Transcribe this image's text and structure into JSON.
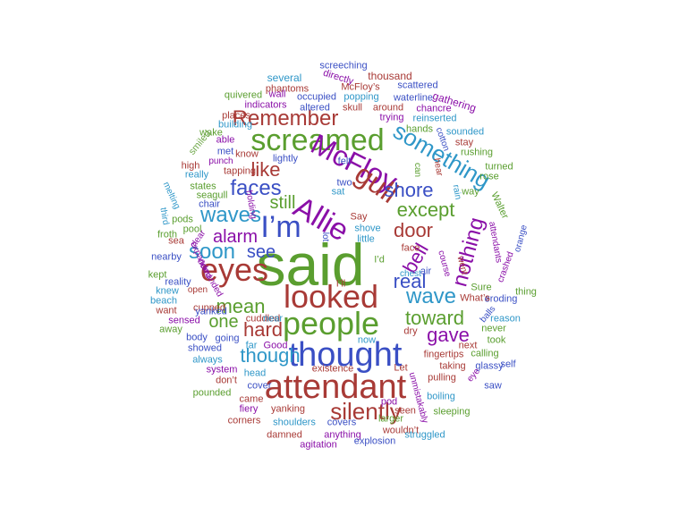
{
  "colors": {
    "green": "#5a9e2f",
    "red": "#a83a36",
    "blue": "#3a4fc4",
    "purple": "#8a0fa8",
    "cyan": "#2f97c8",
    "light_green": "#6fa84a"
  },
  "words": [
    {
      "text": "said",
      "color": "green",
      "size": 66
    },
    {
      "text": "thought",
      "color": "blue",
      "size": 38
    },
    {
      "text": "attendant",
      "color": "red",
      "size": 38
    },
    {
      "text": "people",
      "color": "green",
      "size": 36
    },
    {
      "text": "looked",
      "color": "red",
      "size": 36
    },
    {
      "text": "screamed",
      "color": "green",
      "size": 34
    },
    {
      "text": "eyes",
      "color": "red",
      "size": 36
    },
    {
      "text": "I’m",
      "color": "blue",
      "size": 34
    },
    {
      "text": "Allie",
      "color": "purple",
      "size": 34
    },
    {
      "text": "McFloy",
      "color": "purple",
      "size": 32
    },
    {
      "text": "gull",
      "color": "red",
      "size": 32
    },
    {
      "text": "something",
      "color": "cyan",
      "size": 26
    },
    {
      "text": "faces",
      "color": "blue",
      "size": 24
    },
    {
      "text": "Remember",
      "color": "red",
      "size": 24
    },
    {
      "text": "silently",
      "color": "red",
      "size": 26
    },
    {
      "text": "wave",
      "color": "cyan",
      "size": 24
    },
    {
      "text": "waves",
      "color": "cyan",
      "size": 24
    },
    {
      "text": "soon",
      "color": "cyan",
      "size": 24
    },
    {
      "text": "shore",
      "color": "blue",
      "size": 22
    },
    {
      "text": "mean",
      "color": "green",
      "size": 22
    },
    {
      "text": "nothing",
      "color": "purple",
      "size": 24
    },
    {
      "text": "toward",
      "color": "green",
      "size": 22
    },
    {
      "text": "gave",
      "color": "purple",
      "size": 22
    },
    {
      "text": "alarm",
      "color": "purple",
      "size": 20
    },
    {
      "text": "door",
      "color": "red",
      "size": 22
    },
    {
      "text": "except",
      "color": "green",
      "size": 22
    },
    {
      "text": "real",
      "color": "blue",
      "size": 22
    },
    {
      "text": "bell",
      "color": "purple",
      "size": 22
    },
    {
      "text": "like",
      "color": "red",
      "size": 22
    },
    {
      "text": "see",
      "color": "blue",
      "size": 20
    },
    {
      "text": "still",
      "color": "green",
      "size": 20
    },
    {
      "text": "hard",
      "color": "red",
      "size": 22
    },
    {
      "text": "one",
      "color": "green",
      "size": 20
    },
    {
      "text": "though",
      "color": "cyan",
      "size": 22
    },
    {
      "text": "screeching",
      "color": "blue",
      "size": 11
    },
    {
      "text": "thousand",
      "color": "red",
      "size": 12
    },
    {
      "text": "several",
      "color": "cyan",
      "size": 12
    },
    {
      "text": "directly",
      "color": "purple",
      "size": 11
    },
    {
      "text": "phantoms",
      "color": "red",
      "size": 11
    },
    {
      "text": "McFloy’s",
      "color": "red",
      "size": 11
    },
    {
      "text": "scattered",
      "color": "blue",
      "size": 11
    },
    {
      "text": "quivered",
      "color": "green",
      "size": 11
    },
    {
      "text": "wall",
      "color": "purple",
      "size": 11
    },
    {
      "text": "occupied",
      "color": "blue",
      "size": 11
    },
    {
      "text": "popping",
      "color": "cyan",
      "size": 11
    },
    {
      "text": "waterline",
      "color": "blue",
      "size": 11
    },
    {
      "text": "gathering",
      "color": "purple",
      "size": 12
    },
    {
      "text": "indicators",
      "color": "purple",
      "size": 11
    },
    {
      "text": "altered",
      "color": "blue",
      "size": 11
    },
    {
      "text": "skull",
      "color": "red",
      "size": 11
    },
    {
      "text": "around",
      "color": "red",
      "size": 11
    },
    {
      "text": "chancre",
      "color": "purple",
      "size": 11
    },
    {
      "text": "places",
      "color": "red",
      "size": 11
    },
    {
      "text": "trying",
      "color": "purple",
      "size": 11
    },
    {
      "text": "reinserted",
      "color": "cyan",
      "size": 11
    },
    {
      "text": "building",
      "color": "cyan",
      "size": 11
    },
    {
      "text": "wake",
      "color": "green",
      "size": 11
    },
    {
      "text": "hands",
      "color": "green",
      "size": 11
    },
    {
      "text": "sounded",
      "color": "cyan",
      "size": 11
    },
    {
      "text": "cotton",
      "color": "blue",
      "size": 10
    },
    {
      "text": "smiled",
      "color": "light_green",
      "size": 11
    },
    {
      "text": "able",
      "color": "purple",
      "size": 11
    },
    {
      "text": "stay",
      "color": "red",
      "size": 11
    },
    {
      "text": "know",
      "color": "red",
      "size": 11
    },
    {
      "text": "rushing",
      "color": "green",
      "size": 11
    },
    {
      "text": "met",
      "color": "blue",
      "size": 11
    },
    {
      "text": "felt",
      "color": "blue",
      "size": 11
    },
    {
      "text": "turned",
      "color": "green",
      "size": 11
    },
    {
      "text": "punch",
      "color": "purple",
      "size": 10
    },
    {
      "text": "high",
      "color": "red",
      "size": 11
    },
    {
      "text": "lightly",
      "color": "blue",
      "size": 11
    },
    {
      "text": "hear",
      "color": "red",
      "size": 10
    },
    {
      "text": "really",
      "color": "cyan",
      "size": 11
    },
    {
      "text": "tapping",
      "color": "red",
      "size": 11
    },
    {
      "text": "can",
      "color": "green",
      "size": 10
    },
    {
      "text": "states",
      "color": "green",
      "size": 11
    },
    {
      "text": "two",
      "color": "blue",
      "size": 11
    },
    {
      "text": "rose",
      "color": "green",
      "size": 11
    },
    {
      "text": "melting",
      "color": "cyan",
      "size": 10
    },
    {
      "text": "seagull",
      "color": "green",
      "size": 11
    },
    {
      "text": "rain",
      "color": "cyan",
      "size": 10
    },
    {
      "text": "way",
      "color": "green",
      "size": 11
    },
    {
      "text": "holding",
      "color": "purple",
      "size": 10
    },
    {
      "text": "chair",
      "color": "blue",
      "size": 11
    },
    {
      "text": "sat",
      "color": "cyan",
      "size": 11
    },
    {
      "text": "Walter",
      "color": "green",
      "size": 11
    },
    {
      "text": "third",
      "color": "cyan",
      "size": 10
    },
    {
      "text": "pods",
      "color": "green",
      "size": 11
    },
    {
      "text": "Say",
      "color": "red",
      "size": 11
    },
    {
      "text": "pool",
      "color": "green",
      "size": 11
    },
    {
      "text": "lot",
      "color": "blue",
      "size": 10
    },
    {
      "text": "froth",
      "color": "green",
      "size": 11
    },
    {
      "text": "clear",
      "color": "purple",
      "size": 10
    },
    {
      "text": "shove",
      "color": "cyan",
      "size": 11
    },
    {
      "text": "sea",
      "color": "red",
      "size": 11
    },
    {
      "text": "little",
      "color": "cyan",
      "size": 11
    },
    {
      "text": "attendants",
      "color": "purple",
      "size": 10
    },
    {
      "text": "orange",
      "color": "blue",
      "size": 10
    },
    {
      "text": "I’d",
      "color": "green",
      "size": 11
    },
    {
      "text": "face",
      "color": "red",
      "size": 11
    },
    {
      "text": "course",
      "color": "purple",
      "size": 10
    },
    {
      "text": "expanded",
      "color": "purple",
      "size": 10
    },
    {
      "text": "nearby",
      "color": "blue",
      "size": 11
    },
    {
      "text": "went",
      "color": "red",
      "size": 10
    },
    {
      "text": "crashed",
      "color": "purple",
      "size": 10
    },
    {
      "text": "chest",
      "color": "cyan",
      "size": 10
    },
    {
      "text": "air",
      "color": "blue",
      "size": 11
    },
    {
      "text": "kept",
      "color": "green",
      "size": 11
    },
    {
      "text": "reality",
      "color": "blue",
      "size": 11
    },
    {
      "text": "demanded",
      "color": "purple",
      "size": 10
    },
    {
      "text": "Sure",
      "color": "green",
      "size": 11
    },
    {
      "text": "knew",
      "color": "cyan",
      "size": 11
    },
    {
      "text": "open",
      "color": "red",
      "size": 10
    },
    {
      "text": "I’ll",
      "color": "red",
      "size": 11
    },
    {
      "text": "eroding",
      "color": "blue",
      "size": 11
    },
    {
      "text": "thing",
      "color": "green",
      "size": 11
    },
    {
      "text": "beach",
      "color": "cyan",
      "size": 11
    },
    {
      "text": "cupped",
      "color": "red",
      "size": 11
    },
    {
      "text": "What’s",
      "color": "red",
      "size": 11
    },
    {
      "text": "cuddled",
      "color": "red",
      "size": 11
    },
    {
      "text": "want",
      "color": "red",
      "size": 11
    },
    {
      "text": "yanked",
      "color": "blue",
      "size": 11
    },
    {
      "text": "sensed",
      "color": "purple",
      "size": 11
    },
    {
      "text": "balls",
      "color": "blue",
      "size": 10
    },
    {
      "text": "reason",
      "color": "cyan",
      "size": 11
    },
    {
      "text": "near",
      "color": "cyan",
      "size": 11
    },
    {
      "text": "away",
      "color": "green",
      "size": 11
    },
    {
      "text": "dry",
      "color": "red",
      "size": 11
    },
    {
      "text": "never",
      "color": "green",
      "size": 11
    },
    {
      "text": "body",
      "color": "blue",
      "size": 11
    },
    {
      "text": "going",
      "color": "blue",
      "size": 11
    },
    {
      "text": "took",
      "color": "green",
      "size": 11
    },
    {
      "text": "now",
      "color": "cyan",
      "size": 11
    },
    {
      "text": "next",
      "color": "red",
      "size": 11
    },
    {
      "text": "far",
      "color": "cyan",
      "size": 11
    },
    {
      "text": "Good",
      "color": "purple",
      "size": 11
    },
    {
      "text": "showed",
      "color": "blue",
      "size": 11
    },
    {
      "text": "calling",
      "color": "green",
      "size": 11
    },
    {
      "text": "fingertips",
      "color": "red",
      "size": 11
    },
    {
      "text": "always",
      "color": "cyan",
      "size": 11
    },
    {
      "text": "self",
      "color": "blue",
      "size": 11
    },
    {
      "text": "Let",
      "color": "red",
      "size": 11
    },
    {
      "text": "taking",
      "color": "red",
      "size": 11
    },
    {
      "text": "existence",
      "color": "red",
      "size": 11
    },
    {
      "text": "system",
      "color": "purple",
      "size": 11
    },
    {
      "text": "head",
      "color": "cyan",
      "size": 11
    },
    {
      "text": "glassy",
      "color": "blue",
      "size": 11
    },
    {
      "text": "don’t",
      "color": "red",
      "size": 11
    },
    {
      "text": "pulling",
      "color": "red",
      "size": 11
    },
    {
      "text": "eye",
      "color": "purple",
      "size": 10
    },
    {
      "text": "cover",
      "color": "blue",
      "size": 11
    },
    {
      "text": "saw",
      "color": "blue",
      "size": 11
    },
    {
      "text": "pounded",
      "color": "green",
      "size": 11
    },
    {
      "text": "came",
      "color": "red",
      "size": 11
    },
    {
      "text": "unmistakably",
      "color": "purple",
      "size": 10
    },
    {
      "text": "boiling",
      "color": "cyan",
      "size": 11
    },
    {
      "text": "pod",
      "color": "purple",
      "size": 11
    },
    {
      "text": "fiery",
      "color": "purple",
      "size": 11
    },
    {
      "text": "yanking",
      "color": "red",
      "size": 11
    },
    {
      "text": "seen",
      "color": "red",
      "size": 11
    },
    {
      "text": "sleeping",
      "color": "green",
      "size": 11
    },
    {
      "text": "corners",
      "color": "red",
      "size": 11
    },
    {
      "text": "shoulders",
      "color": "cyan",
      "size": 11
    },
    {
      "text": "covers",
      "color": "blue",
      "size": 11
    },
    {
      "text": "larger",
      "color": "green",
      "size": 11
    },
    {
      "text": "damned",
      "color": "red",
      "size": 11
    },
    {
      "text": "anything",
      "color": "purple",
      "size": 11
    },
    {
      "text": "wouldn’t",
      "color": "red",
      "size": 11
    },
    {
      "text": "struggled",
      "color": "cyan",
      "size": 11
    },
    {
      "text": "agitation",
      "color": "purple",
      "size": 11
    },
    {
      "text": "explosion",
      "color": "blue",
      "size": 11
    }
  ]
}
